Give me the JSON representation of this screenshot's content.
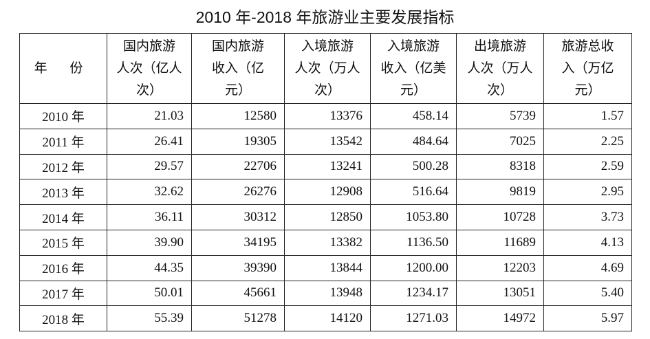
{
  "title": "2010 年-2018 年旅游业主要发展指标",
  "table": {
    "header": [
      [
        "年 份"
      ],
      [
        "国内旅游",
        "人次（亿人",
        "次）"
      ],
      [
        "国内旅游",
        "收入（亿",
        "元）"
      ],
      [
        "入境旅游",
        "人次（万人",
        "次）"
      ],
      [
        "入境旅游",
        "收入（亿美",
        "元）"
      ],
      [
        "出境旅游",
        "人次（万人",
        "次）"
      ],
      [
        "旅游总收",
        "入（万亿",
        "元）"
      ]
    ],
    "rows": [
      [
        "2010 年",
        "21.03",
        "12580",
        "13376",
        "458.14",
        "5739",
        "1.57"
      ],
      [
        "2011 年",
        "26.41",
        "19305",
        "13542",
        "484.64",
        "7025",
        "2.25"
      ],
      [
        "2012 年",
        "29.57",
        "22706",
        "13241",
        "500.28",
        "8318",
        "2.59"
      ],
      [
        "2013 年",
        "32.62",
        "26276",
        "12908",
        "516.64",
        "9819",
        "2.95"
      ],
      [
        "2014 年",
        "36.11",
        "30312",
        "12850",
        "1053.80",
        "10728",
        "3.73"
      ],
      [
        "2015 年",
        "39.90",
        "34195",
        "13382",
        "1136.50",
        "11689",
        "4.13"
      ],
      [
        "2016 年",
        "44.35",
        "39390",
        "13844",
        "1200.00",
        "12203",
        "4.69"
      ],
      [
        "2017 年",
        "50.01",
        "45661",
        "13948",
        "1234.17",
        "13051",
        "5.40"
      ],
      [
        "2018 年",
        "55.39",
        "51278",
        "14120",
        "1271.03",
        "14972",
        "5.97"
      ]
    ]
  }
}
